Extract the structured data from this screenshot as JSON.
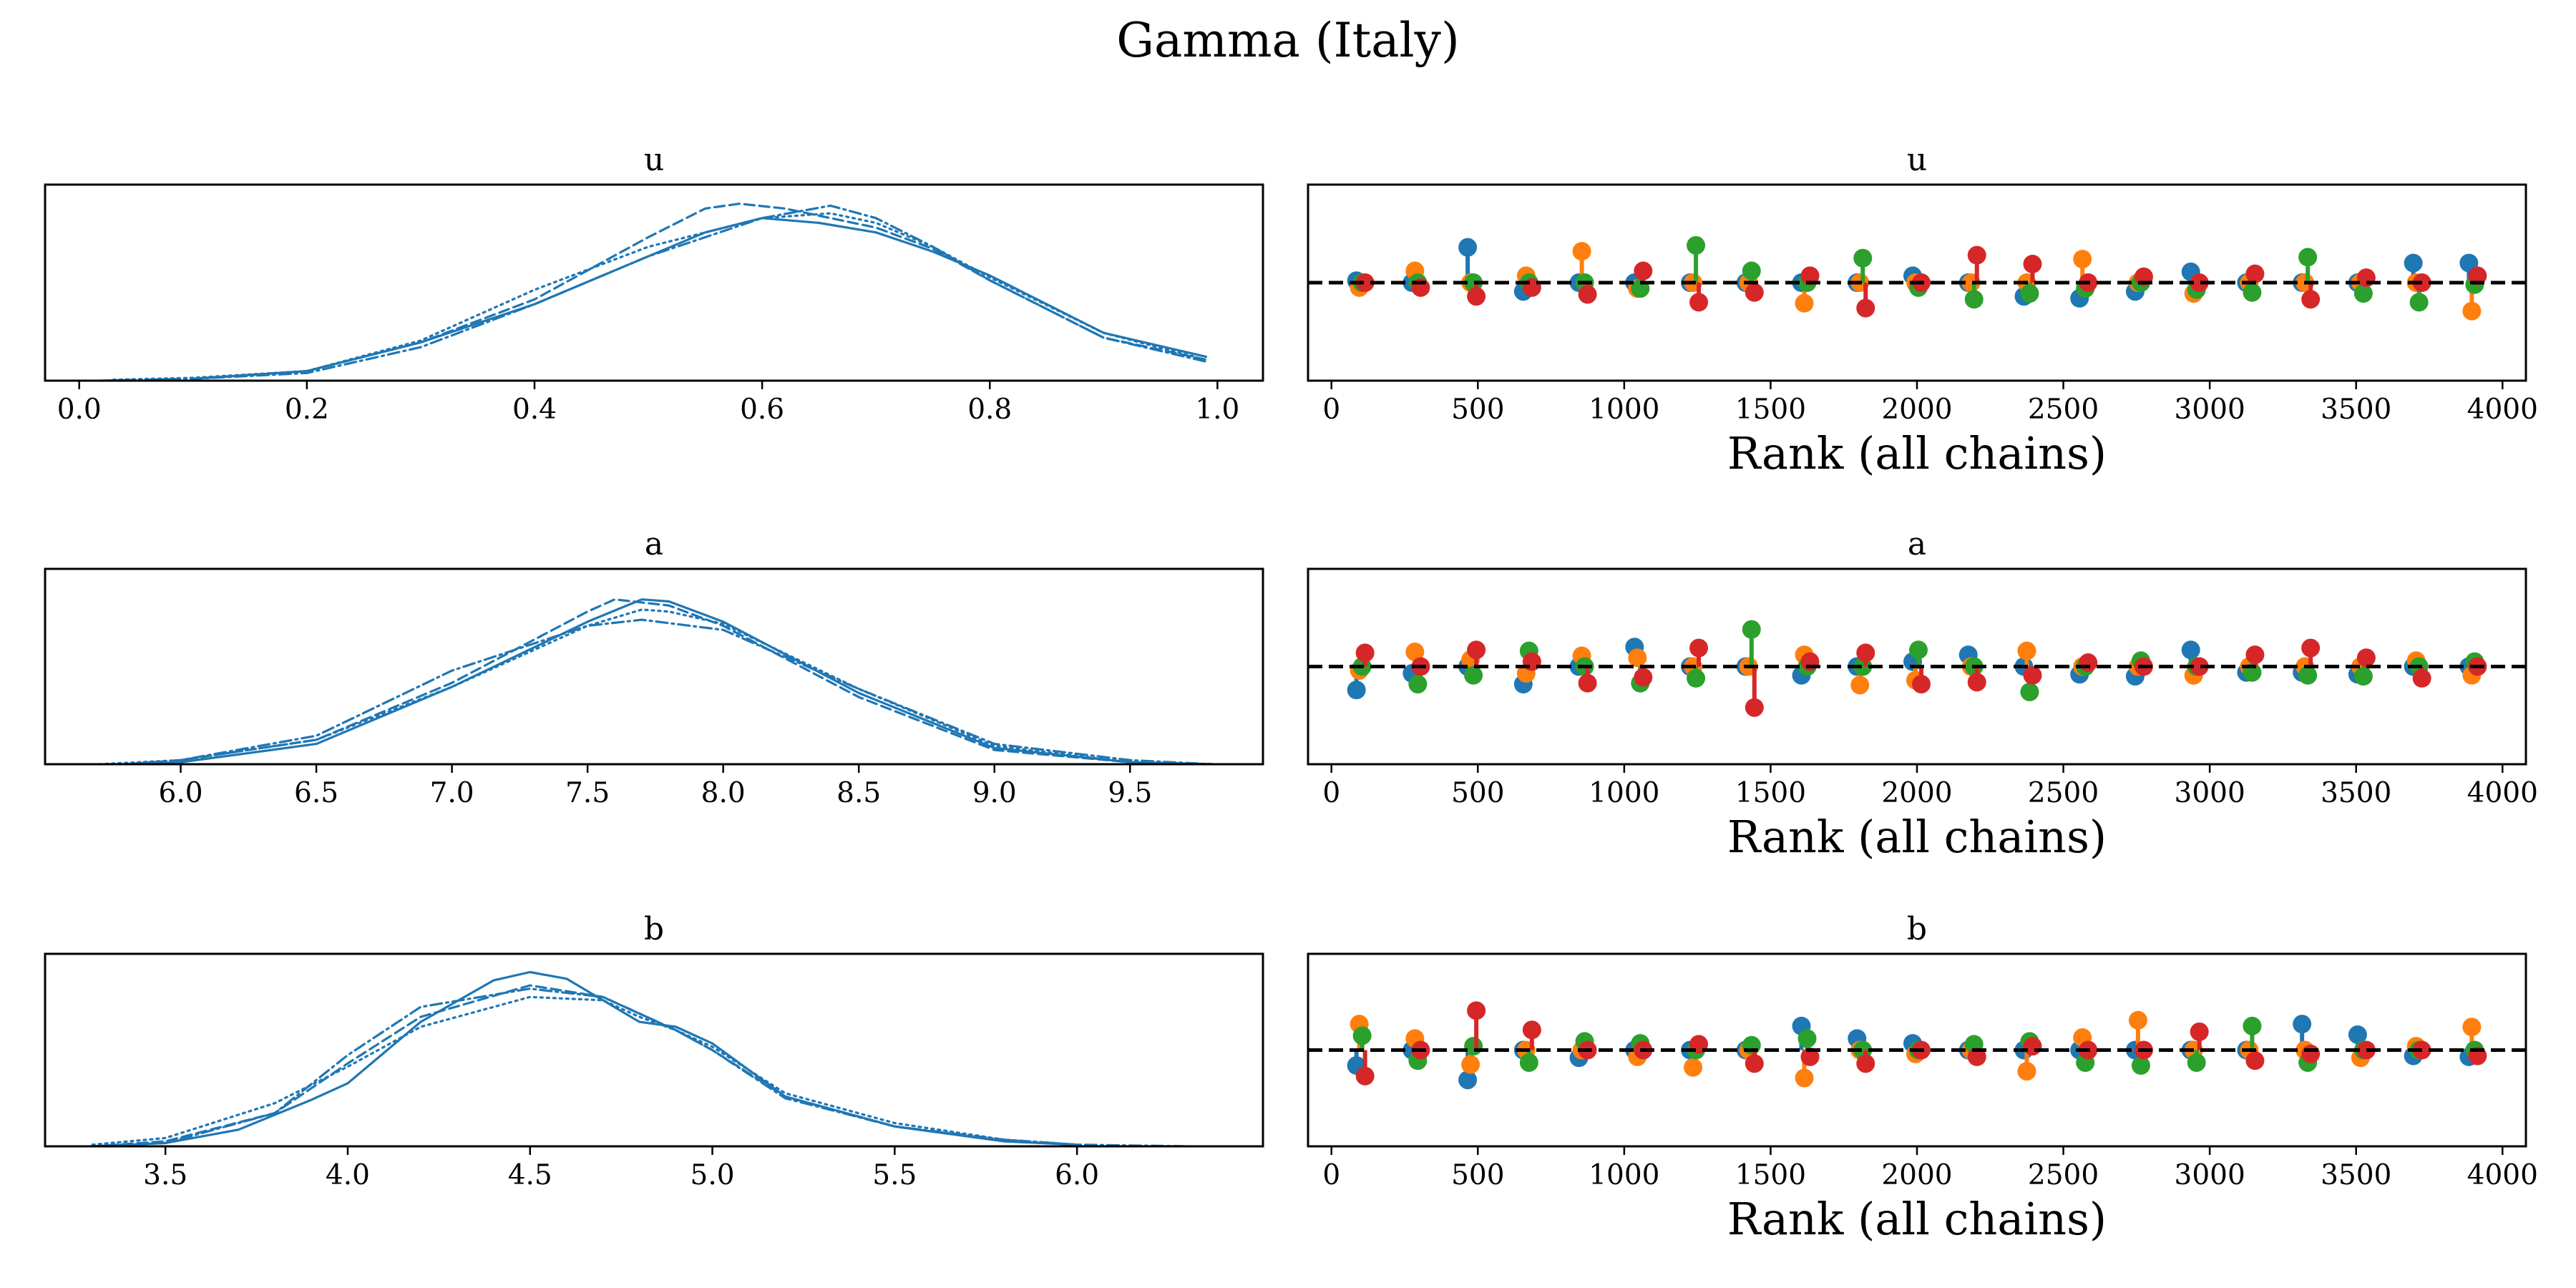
{
  "figure": {
    "title": "Gamma (Italy)",
    "chain_colors": [
      "#1f77b4",
      "#ff7f0e",
      "#2ca02c",
      "#d62728"
    ],
    "kde_color": "#1f77b4"
  },
  "chart_data": [
    {
      "type": "line",
      "title": "u",
      "subtitle": "KDE per chain",
      "xlim": [
        -0.03,
        1.04
      ],
      "xticks": [
        0.0,
        0.2,
        0.4,
        0.6,
        0.8,
        1.0
      ],
      "xtick_labels": [
        "0.0",
        "0.2",
        "0.4",
        "0.6",
        "0.8",
        "1.0"
      ],
      "ylim": [
        0,
        2.05
      ],
      "grid": false,
      "series": [
        {
          "linestyle": "solid",
          "x": [
            0.1,
            0.2,
            0.3,
            0.4,
            0.5,
            0.55,
            0.6,
            0.65,
            0.7,
            0.75,
            0.8,
            0.9,
            0.99
          ],
          "y": [
            0.02,
            0.1,
            0.4,
            0.8,
            1.3,
            1.55,
            1.7,
            1.65,
            1.55,
            1.35,
            1.1,
            0.5,
            0.25
          ]
        },
        {
          "linestyle": "dashed",
          "x": [
            0.1,
            0.2,
            0.3,
            0.4,
            0.5,
            0.55,
            0.58,
            0.62,
            0.7,
            0.75,
            0.8,
            0.9,
            0.99
          ],
          "y": [
            0.02,
            0.1,
            0.4,
            0.85,
            1.5,
            1.8,
            1.85,
            1.8,
            1.6,
            1.38,
            1.05,
            0.45,
            0.22
          ]
        },
        {
          "linestyle": "dotted",
          "x": [
            0.03,
            0.1,
            0.2,
            0.3,
            0.4,
            0.5,
            0.6,
            0.66,
            0.7,
            0.75,
            0.8,
            0.9,
            0.98
          ],
          "y": [
            0.01,
            0.03,
            0.1,
            0.42,
            0.95,
            1.4,
            1.7,
            1.75,
            1.65,
            1.4,
            1.08,
            0.5,
            0.25
          ]
        },
        {
          "linestyle": "dashdot",
          "x": [
            0.02,
            0.1,
            0.2,
            0.3,
            0.4,
            0.5,
            0.6,
            0.66,
            0.7,
            0.75,
            0.8,
            0.9,
            0.99
          ],
          "y": [
            0.0,
            0.02,
            0.08,
            0.35,
            0.8,
            1.3,
            1.7,
            1.83,
            1.7,
            1.4,
            1.05,
            0.45,
            0.2
          ]
        }
      ]
    },
    {
      "type": "scatter",
      "title": "u",
      "subtitle": "rank vlines",
      "xlabel": "Rank (all chains)",
      "xlim": [
        -80,
        4080
      ],
      "xticks": [
        0,
        500,
        1000,
        1500,
        2000,
        2500,
        3000,
        3500,
        4000
      ],
      "xtick_labels": [
        "0",
        "500",
        "1000",
        "1500",
        "2000",
        "2500",
        "3000",
        "3500",
        "4000"
      ],
      "ylim": [
        -1.0,
        1.0
      ],
      "reference_line": 0,
      "x": [
        100,
        290,
        480,
        670,
        860,
        1050,
        1240,
        1430,
        1620,
        1810,
        2000,
        2190,
        2380,
        2570,
        2760,
        2950,
        3140,
        3330,
        3520,
        3710,
        3900
      ],
      "series": [
        {
          "chain": 0,
          "values": [
            0.02,
            0.0,
            0.36,
            -0.09,
            0.0,
            0.0,
            0.0,
            0.0,
            0.0,
            0.0,
            0.07,
            0.0,
            -0.14,
            -0.16,
            -0.09,
            0.11,
            0.0,
            0.0,
            0.0,
            0.2,
            0.2
          ]
        },
        {
          "chain": 1,
          "values": [
            -0.05,
            0.12,
            0.0,
            0.07,
            0.32,
            -0.06,
            0.0,
            0.0,
            -0.21,
            0.0,
            0.0,
            0.0,
            0.0,
            0.24,
            0.0,
            -0.11,
            0.0,
            0.0,
            0.0,
            0.0,
            -0.29
          ]
        },
        {
          "chain": 2,
          "values": [
            0.0,
            0.0,
            0.0,
            0.0,
            0.0,
            -0.06,
            0.38,
            0.12,
            0.0,
            0.25,
            -0.05,
            -0.17,
            -0.11,
            -0.06,
            0.0,
            -0.07,
            -0.1,
            0.26,
            -0.11,
            -0.2,
            -0.02
          ]
        },
        {
          "chain": 3,
          "values": [
            0.0,
            -0.05,
            -0.14,
            -0.05,
            -0.12,
            0.12,
            -0.2,
            -0.1,
            0.07,
            -0.26,
            0.0,
            0.28,
            0.19,
            0.0,
            0.06,
            0.0,
            0.09,
            -0.17,
            0.05,
            0.0,
            0.07
          ]
        }
      ]
    },
    {
      "type": "line",
      "title": "a",
      "subtitle": "KDE per chain",
      "xlim": [
        5.5,
        9.99
      ],
      "xticks": [
        6.0,
        6.5,
        7.0,
        7.5,
        8.0,
        8.5,
        9.0,
        9.5
      ],
      "xtick_labels": [
        "6.0",
        "6.5",
        "7.0",
        "7.5",
        "8.0",
        "8.5",
        "9.0",
        "9.5"
      ],
      "ylim": [
        0,
        0.96
      ],
      "grid": false,
      "series": [
        {
          "linestyle": "solid",
          "x": [
            5.8,
            6.0,
            6.5,
            7.0,
            7.5,
            7.7,
            7.8,
            8.0,
            8.5,
            9.0,
            9.5,
            9.8
          ],
          "y": [
            0.0,
            0.01,
            0.1,
            0.38,
            0.7,
            0.81,
            0.8,
            0.7,
            0.35,
            0.08,
            0.01,
            0.0
          ]
        },
        {
          "linestyle": "dashed",
          "x": [
            5.8,
            6.0,
            6.5,
            7.0,
            7.5,
            7.6,
            7.8,
            8.0,
            8.5,
            9.0,
            9.5,
            9.8
          ],
          "y": [
            0.0,
            0.02,
            0.12,
            0.4,
            0.75,
            0.81,
            0.78,
            0.68,
            0.33,
            0.07,
            0.01,
            0.0
          ]
        },
        {
          "linestyle": "dotted",
          "x": [
            5.7,
            6.0,
            6.5,
            7.0,
            7.5,
            7.7,
            7.8,
            8.0,
            8.5,
            9.0,
            9.5,
            9.8
          ],
          "y": [
            0.0,
            0.02,
            0.12,
            0.38,
            0.68,
            0.76,
            0.75,
            0.69,
            0.37,
            0.09,
            0.01,
            0.0
          ]
        },
        {
          "linestyle": "dashdot",
          "x": [
            5.8,
            6.0,
            6.5,
            7.0,
            7.5,
            7.7,
            8.0,
            8.5,
            9.0,
            9.5,
            9.8
          ],
          "y": [
            0.0,
            0.02,
            0.14,
            0.46,
            0.68,
            0.71,
            0.66,
            0.37,
            0.1,
            0.02,
            0.0
          ]
        }
      ]
    },
    {
      "type": "scatter",
      "title": "a",
      "subtitle": "rank vlines",
      "xlabel": "Rank (all chains)",
      "xlim": [
        -80,
        4080
      ],
      "xticks": [
        0,
        500,
        1000,
        1500,
        2000,
        2500,
        3000,
        3500,
        4000
      ],
      "xtick_labels": [
        "0",
        "500",
        "1000",
        "1500",
        "2000",
        "2500",
        "3000",
        "3500",
        "4000"
      ],
      "ylim": [
        -1.0,
        1.0
      ],
      "reference_line": 0,
      "x": [
        100,
        290,
        480,
        670,
        860,
        1050,
        1240,
        1430,
        1620,
        1810,
        2000,
        2190,
        2380,
        2570,
        2760,
        2950,
        3140,
        3330,
        3520,
        3710,
        3900
      ],
      "series": [
        {
          "chain": 0,
          "values": [
            -0.24,
            -0.07,
            0.0,
            -0.18,
            0.0,
            0.2,
            0.0,
            0.0,
            -0.09,
            0.0,
            0.05,
            0.12,
            0.0,
            -0.08,
            -0.1,
            0.17,
            -0.06,
            -0.06,
            -0.08,
            0.0,
            0.0
          ]
        },
        {
          "chain": 1,
          "values": [
            -0.04,
            0.15,
            0.07,
            -0.07,
            0.11,
            0.09,
            0.0,
            0.0,
            0.12,
            -0.19,
            -0.14,
            0.0,
            0.16,
            0.0,
            0.0,
            -0.09,
            0.0,
            0.0,
            0.0,
            0.06,
            -0.09
          ]
        },
        {
          "chain": 2,
          "values": [
            0.0,
            -0.18,
            -0.09,
            0.16,
            0.0,
            -0.17,
            -0.12,
            0.38,
            0.0,
            0.0,
            0.17,
            0.0,
            -0.26,
            0.0,
            0.06,
            0.0,
            -0.06,
            -0.09,
            -0.1,
            0.0,
            0.05
          ]
        },
        {
          "chain": 3,
          "values": [
            0.14,
            0.0,
            0.17,
            0.05,
            -0.17,
            -0.11,
            0.19,
            -0.42,
            0.05,
            0.14,
            -0.18,
            -0.16,
            -0.09,
            0.04,
            0.0,
            0.0,
            0.12,
            0.19,
            0.09,
            -0.12,
            0.0
          ]
        }
      ]
    },
    {
      "type": "line",
      "title": "b",
      "subtitle": "KDE per chain",
      "xlim": [
        3.17,
        6.51
      ],
      "xticks": [
        3.5,
        4.0,
        4.5,
        5.0,
        5.5,
        6.0
      ],
      "xtick_labels": [
        "3.5",
        "4.0",
        "4.5",
        "5.0",
        "5.5",
        "6.0"
      ],
      "ylim": [
        0,
        1.16
      ],
      "grid": false,
      "series": [
        {
          "linestyle": "solid",
          "x": [
            3.3,
            3.5,
            3.7,
            3.9,
            4.0,
            4.2,
            4.4,
            4.5,
            4.6,
            4.7,
            4.8,
            4.9,
            5.0,
            5.2,
            5.5,
            5.8,
            6.0
          ],
          "y": [
            0.0,
            0.02,
            0.1,
            0.28,
            0.38,
            0.75,
            1.0,
            1.05,
            1.01,
            0.88,
            0.75,
            0.72,
            0.62,
            0.3,
            0.12,
            0.03,
            0.01
          ]
        },
        {
          "linestyle": "dashed",
          "x": [
            3.3,
            3.5,
            3.8,
            4.0,
            4.2,
            4.5,
            4.7,
            4.8,
            4.9,
            5.0,
            5.2,
            5.5,
            5.8,
            6.0
          ],
          "y": [
            0.0,
            0.03,
            0.2,
            0.5,
            0.78,
            0.97,
            0.9,
            0.8,
            0.7,
            0.58,
            0.3,
            0.12,
            0.03,
            0.01
          ]
        },
        {
          "linestyle": "dotted",
          "x": [
            3.3,
            3.5,
            3.8,
            4.0,
            4.2,
            4.5,
            4.7,
            4.8,
            4.9,
            5.0,
            5.2,
            5.5,
            5.8,
            6.0
          ],
          "y": [
            0.01,
            0.05,
            0.26,
            0.48,
            0.72,
            0.9,
            0.88,
            0.78,
            0.7,
            0.6,
            0.32,
            0.14,
            0.04,
            0.01
          ]
        },
        {
          "linestyle": "dashdot",
          "x": [
            3.3,
            3.5,
            3.8,
            4.0,
            4.2,
            4.5,
            4.7,
            4.8,
            4.9,
            5.0,
            5.2,
            5.5,
            5.8,
            6.0,
            6.3
          ],
          "y": [
            0.0,
            0.02,
            0.2,
            0.55,
            0.84,
            0.95,
            0.9,
            0.8,
            0.7,
            0.58,
            0.29,
            0.12,
            0.04,
            0.01,
            0.0
          ]
        }
      ]
    },
    {
      "type": "scatter",
      "title": "b",
      "subtitle": "rank vlines",
      "xlabel": "Rank (all chains)",
      "xlim": [
        -80,
        4080
      ],
      "xticks": [
        0,
        500,
        1000,
        1500,
        2000,
        2500,
        3000,
        3500,
        4000
      ],
      "xtick_labels": [
        "0",
        "500",
        "1000",
        "1500",
        "2000",
        "2500",
        "3000",
        "3500",
        "4000"
      ],
      "ylim": [
        -1.0,
        1.0
      ],
      "reference_line": 0,
      "x": [
        100,
        290,
        480,
        670,
        860,
        1050,
        1240,
        1430,
        1620,
        1810,
        2000,
        2190,
        2380,
        2570,
        2760,
        2950,
        3140,
        3330,
        3520,
        3710,
        3900
      ],
      "series": [
        {
          "chain": 0,
          "values": [
            -0.16,
            0.0,
            -0.31,
            0.0,
            -0.08,
            0.0,
            0.0,
            0.0,
            0.25,
            0.12,
            0.07,
            0.0,
            0.0,
            0.0,
            0.0,
            0.0,
            0.0,
            0.27,
            0.16,
            -0.06,
            -0.07
          ]
        },
        {
          "chain": 1,
          "values": [
            0.27,
            0.12,
            -0.15,
            0.0,
            0.0,
            -0.07,
            -0.18,
            0.0,
            -0.29,
            0.0,
            -0.04,
            0.0,
            -0.22,
            0.13,
            0.31,
            0.0,
            0.0,
            0.0,
            -0.08,
            0.04,
            0.24
          ]
        },
        {
          "chain": 2,
          "values": [
            0.15,
            -0.11,
            0.04,
            -0.13,
            0.09,
            0.07,
            0.0,
            0.05,
            0.12,
            0.0,
            0.0,
            0.06,
            0.09,
            -0.13,
            -0.16,
            -0.13,
            0.25,
            -0.13,
            0.0,
            0.0,
            0.0
          ]
        },
        {
          "chain": 3,
          "values": [
            -0.27,
            0.0,
            0.41,
            0.21,
            0.0,
            0.0,
            0.06,
            -0.14,
            -0.07,
            -0.14,
            0.0,
            -0.07,
            0.04,
            0.0,
            0.0,
            0.19,
            -0.11,
            -0.04,
            0.0,
            0.0,
            -0.06
          ]
        }
      ]
    }
  ]
}
